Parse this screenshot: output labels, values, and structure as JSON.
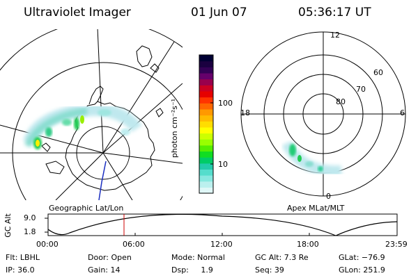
{
  "header": {
    "instrument": "Ultraviolet Imager",
    "date": "01 Jun 07",
    "time": "05:36:17 UT"
  },
  "left_map": {
    "label": "Geographic Lat/Lon"
  },
  "right_map": {
    "label": "Apex MLat/MLT",
    "mlt_labels": {
      "top": "12",
      "left": "18",
      "right": "6",
      "bottom": "0"
    },
    "lat_labels": [
      "60",
      "70",
      "80"
    ]
  },
  "colorbar": {
    "unit": "photon cm⁻²s⁻¹",
    "ticks": [
      "100",
      "10"
    ],
    "colors": [
      "#000033",
      "#1a0040",
      "#330055",
      "#66006b",
      "#99004d",
      "#cc0022",
      "#e60000",
      "#ff3300",
      "#ff6600",
      "#ff9900",
      "#ffbb00",
      "#ffdd00",
      "#ffff00",
      "#ccff00",
      "#99ff00",
      "#55ee00",
      "#11dd22",
      "#00cc66",
      "#22ccaa",
      "#55ddcc",
      "#88e8e0",
      "#bbf0ee",
      "#e0f8f8"
    ]
  },
  "altitude_plot": {
    "y_label": "GC Alt",
    "y_ticks": [
      "9.0",
      "1.8"
    ],
    "x_ticks": [
      "00:00",
      "06:00",
      "12:00",
      "18:00",
      "23:59"
    ],
    "marker_color": "#cc0000"
  },
  "info": {
    "flt": "Flt: LBHL",
    "ip": "IP: 36.0",
    "door": "Door: Open",
    "gain": "Gain: 14",
    "mode": "Mode: Normal",
    "dsp": "Dsp:     1.9",
    "gc_alt": "GC Alt: 7.3 Re",
    "seq": "Seq: 39",
    "glat": "GLat: −76.9",
    "glon": "GLon: 251.9"
  }
}
